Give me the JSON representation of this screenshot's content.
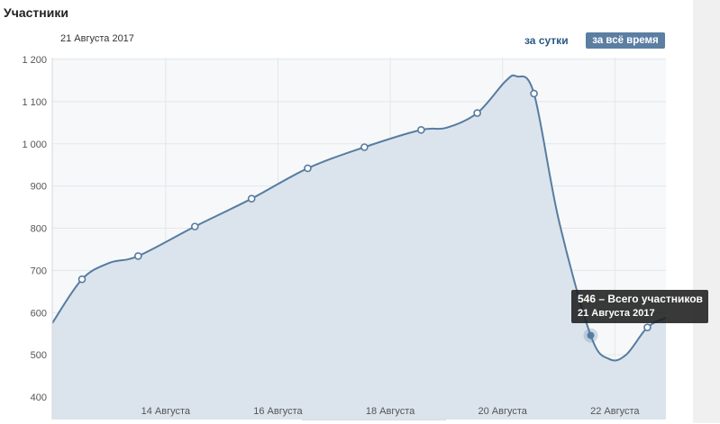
{
  "header": {
    "title": "Участники",
    "date": "21 Августа 2017"
  },
  "period": {
    "day_label": "за сутки",
    "all_label": "за всё время"
  },
  "tooltip": {
    "line1": "546 – Всего участников",
    "line2": "21 Августа 2017"
  },
  "colors": {
    "line": "#577ca2",
    "fill": "#dbe4ec",
    "grid": "#e4e7ea",
    "plot_bg": "#f7f8f9",
    "highlight": "#577ca2"
  },
  "chart_data": {
    "type": "area",
    "title": "Участники",
    "ylim": [
      380,
      1200
    ],
    "y_ticks": [
      {
        "value": 400,
        "label": "400"
      },
      {
        "value": 500,
        "label": "500"
      },
      {
        "value": 600,
        "label": "600"
      },
      {
        "value": 700,
        "label": "700"
      },
      {
        "value": 800,
        "label": "800"
      },
      {
        "value": 900,
        "label": "900"
      },
      {
        "value": 1000,
        "label": "1 000"
      },
      {
        "value": 1100,
        "label": "1 100"
      },
      {
        "value": 1200,
        "label": "1 200"
      }
    ],
    "xlim": [
      11.98,
      22.91
    ],
    "x_ticks": [
      {
        "day": 14,
        "label": "14 Августа"
      },
      {
        "day": 16,
        "label": "16 Августа"
      },
      {
        "day": 18,
        "label": "18 Августа"
      },
      {
        "day": 20,
        "label": "20 Августа"
      },
      {
        "day": 22,
        "label": "22 Августа"
      }
    ],
    "curve": [
      {
        "day": 11.98,
        "value": 575
      },
      {
        "day": 12.51,
        "value": 679
      },
      {
        "day": 13.0,
        "value": 718
      },
      {
        "day": 13.51,
        "value": 734
      },
      {
        "day": 14.52,
        "value": 804
      },
      {
        "day": 15.53,
        "value": 870
      },
      {
        "day": 16.53,
        "value": 942
      },
      {
        "day": 17.54,
        "value": 992
      },
      {
        "day": 18.55,
        "value": 1033
      },
      {
        "day": 19.0,
        "value": 1038
      },
      {
        "day": 19.55,
        "value": 1073
      },
      {
        "day": 20.05,
        "value": 1148
      },
      {
        "day": 20.25,
        "value": 1160
      },
      {
        "day": 20.56,
        "value": 1119
      },
      {
        "day": 21.0,
        "value": 820
      },
      {
        "day": 21.57,
        "value": 546
      },
      {
        "day": 21.9,
        "value": 490
      },
      {
        "day": 22.2,
        "value": 500
      },
      {
        "day": 22.58,
        "value": 565
      },
      {
        "day": 22.91,
        "value": 588
      }
    ],
    "points": [
      {
        "day": 12.51,
        "value": 679
      },
      {
        "day": 13.51,
        "value": 734
      },
      {
        "day": 14.52,
        "value": 804
      },
      {
        "day": 15.53,
        "value": 870
      },
      {
        "day": 16.53,
        "value": 942
      },
      {
        "day": 17.54,
        "value": 992
      },
      {
        "day": 18.55,
        "value": 1033
      },
      {
        "day": 19.55,
        "value": 1073
      },
      {
        "day": 20.56,
        "value": 1119
      },
      {
        "day": 21.57,
        "value": 546,
        "highlighted": true
      },
      {
        "day": 22.58,
        "value": 565
      }
    ]
  }
}
